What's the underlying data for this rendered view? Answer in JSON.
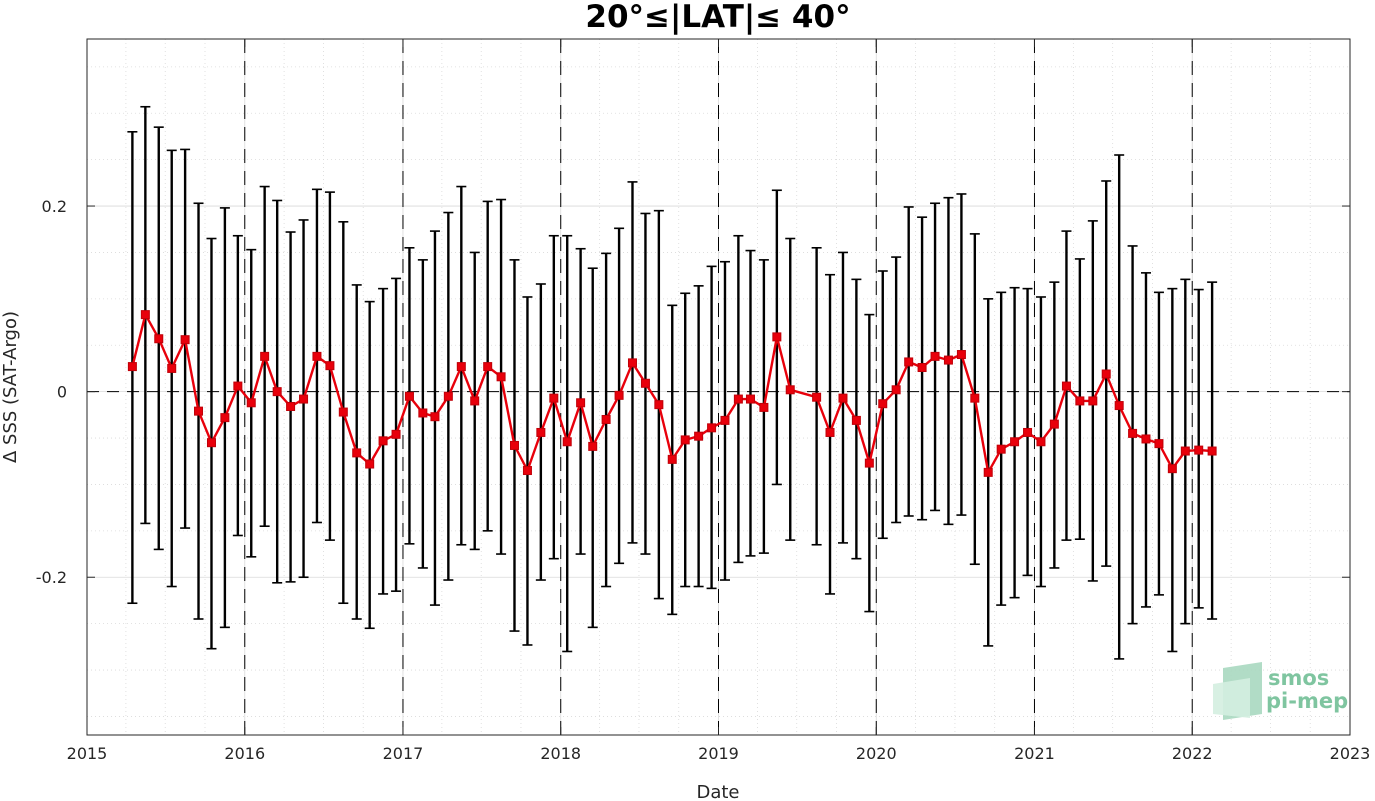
{
  "chart_data": {
    "type": "line",
    "title": "20°≤|LAT|≤ 40°",
    "xlabel": "Date",
    "ylabel": "Δ SSS (SAT-Argo)",
    "xlim": [
      "2015-01-01",
      "2023-01-01"
    ],
    "ylim": [
      -0.37,
      0.38
    ],
    "x_ticks": [
      "2015",
      "2016",
      "2017",
      "2018",
      "2019",
      "2020",
      "2021",
      "2022",
      "2023"
    ],
    "y_ticks": [
      {
        "value": -0.2,
        "label": "-0.2"
      },
      {
        "value": 0,
        "label": "0"
      },
      {
        "value": 0.2,
        "label": "0.2"
      }
    ],
    "grid": true,
    "reference_lines": {
      "horizontal_dashed_at": 0,
      "vertical_dashed_at": [
        "2016-01-01",
        "2017-01-01",
        "2018-01-01",
        "2019-01-01",
        "2020-01-01",
        "2021-01-01",
        "2022-01-01"
      ]
    },
    "colors": {
      "series": "#e8000b",
      "errorbar": "#000000",
      "grid": "#d9d9d9"
    },
    "series": [
      {
        "x": [
          "2015-04-16",
          "2015-05-16",
          "2015-06-16",
          "2015-07-16",
          "2015-08-16",
          "2015-09-16",
          "2015-10-16",
          "2015-11-16",
          "2015-12-16",
          "2016-01-16",
          "2016-02-16",
          "2016-03-16",
          "2016-04-16",
          "2016-05-16",
          "2016-06-16",
          "2016-07-16",
          "2016-08-16",
          "2016-09-16",
          "2016-10-16",
          "2016-11-16",
          "2016-12-16",
          "2017-01-16",
          "2017-02-16",
          "2017-03-16",
          "2017-04-16",
          "2017-05-16",
          "2017-06-16",
          "2017-07-16",
          "2017-08-16",
          "2017-09-16",
          "2017-10-16",
          "2017-11-16",
          "2017-12-16",
          "2018-01-16",
          "2018-02-16",
          "2018-03-16",
          "2018-04-16",
          "2018-05-16",
          "2018-06-16",
          "2018-07-16",
          "2018-08-16",
          "2018-09-16",
          "2018-10-16",
          "2018-11-16",
          "2018-12-16",
          "2019-01-16",
          "2019-02-16",
          "2019-03-16",
          "2019-04-16",
          "2019-05-16",
          "2019-06-16",
          "2019-08-16",
          "2019-09-16",
          "2019-10-16",
          "2019-11-16",
          "2019-12-16",
          "2020-01-16",
          "2020-02-16",
          "2020-03-16",
          "2020-04-16",
          "2020-05-16",
          "2020-06-16",
          "2020-07-16",
          "2020-08-16",
          "2020-09-16",
          "2020-10-16",
          "2020-11-16",
          "2020-12-16",
          "2021-01-16",
          "2021-02-16",
          "2021-03-16",
          "2021-04-16",
          "2021-05-16",
          "2021-06-16",
          "2021-07-16",
          "2021-08-16",
          "2021-09-16",
          "2021-10-16",
          "2021-11-16",
          "2021-12-16",
          "2022-01-16",
          "2022-02-16"
        ],
        "y": [
          0.027,
          0.083,
          0.057,
          0.025,
          0.056,
          -0.021,
          -0.055,
          -0.028,
          0.006,
          -0.012,
          0.038,
          0.0,
          -0.016,
          -0.008,
          0.038,
          0.028,
          -0.022,
          -0.066,
          -0.078,
          -0.053,
          -0.046,
          -0.005,
          -0.023,
          -0.027,
          -0.005,
          0.027,
          -0.01,
          0.027,
          0.016,
          -0.058,
          -0.085,
          -0.044,
          -0.007,
          -0.054,
          -0.012,
          -0.059,
          -0.03,
          -0.004,
          0.031,
          0.009,
          -0.014,
          -0.073,
          -0.052,
          -0.048,
          -0.039,
          -0.031,
          -0.008,
          -0.008,
          -0.017,
          0.059,
          0.002,
          -0.006,
          -0.044,
          -0.007,
          -0.031,
          -0.077,
          -0.013,
          0.002,
          0.032,
          0.026,
          0.038,
          0.034,
          0.04,
          -0.007,
          -0.087,
          -0.062,
          -0.054,
          -0.044,
          -0.054,
          -0.035,
          0.006,
          -0.01,
          -0.01,
          0.019,
          -0.015,
          -0.045,
          -0.051,
          -0.056,
          -0.083,
          -0.064,
          -0.063,
          -0.064
        ],
        "y_upper": [
          0.28,
          0.307,
          0.285,
          0.26,
          0.261,
          0.203,
          0.165,
          0.198,
          0.168,
          0.153,
          0.221,
          0.206,
          0.172,
          0.185,
          0.218,
          0.215,
          0.183,
          0.115,
          0.097,
          0.111,
          0.122,
          0.155,
          0.142,
          0.173,
          0.193,
          0.221,
          0.15,
          0.205,
          0.207,
          0.142,
          0.102,
          0.116,
          0.168,
          0.168,
          0.154,
          0.133,
          0.149,
          0.176,
          0.226,
          0.192,
          0.195,
          0.093,
          0.106,
          0.114,
          0.135,
          0.14,
          0.168,
          0.152,
          0.142,
          0.217,
          0.165,
          0.155,
          0.126,
          0.15,
          0.121,
          0.083,
          0.13,
          0.145,
          0.199,
          0.188,
          0.203,
          0.209,
          0.213,
          0.17,
          0.1,
          0.107,
          0.112,
          0.111,
          0.102,
          0.118,
          0.173,
          0.143,
          0.184,
          0.227,
          0.255,
          0.157,
          0.128,
          0.107,
          0.111,
          0.121,
          0.11,
          0.118
        ],
        "y_lower": [
          -0.228,
          -0.142,
          -0.17,
          -0.21,
          -0.147,
          -0.245,
          -0.277,
          -0.254,
          -0.155,
          -0.178,
          -0.145,
          -0.206,
          -0.205,
          -0.2,
          -0.141,
          -0.16,
          -0.228,
          -0.245,
          -0.255,
          -0.218,
          -0.215,
          -0.164,
          -0.19,
          -0.23,
          -0.203,
          -0.165,
          -0.17,
          -0.15,
          -0.175,
          -0.258,
          -0.273,
          -0.203,
          -0.18,
          -0.28,
          -0.175,
          -0.254,
          -0.21,
          -0.185,
          -0.163,
          -0.175,
          -0.223,
          -0.24,
          -0.21,
          -0.21,
          -0.212,
          -0.203,
          -0.184,
          -0.177,
          -0.174,
          -0.1,
          -0.16,
          -0.165,
          -0.218,
          -0.163,
          -0.18,
          -0.237,
          -0.158,
          -0.141,
          -0.134,
          -0.138,
          -0.128,
          -0.143,
          -0.133,
          -0.186,
          -0.274,
          -0.23,
          -0.222,
          -0.198,
          -0.21,
          -0.19,
          -0.16,
          -0.159,
          -0.204,
          -0.188,
          -0.288,
          -0.25,
          -0.232,
          -0.219,
          -0.28,
          -0.25,
          -0.233,
          -0.245
        ]
      }
    ]
  },
  "logo": {
    "line1": "smos",
    "line2": "pi-mep"
  }
}
